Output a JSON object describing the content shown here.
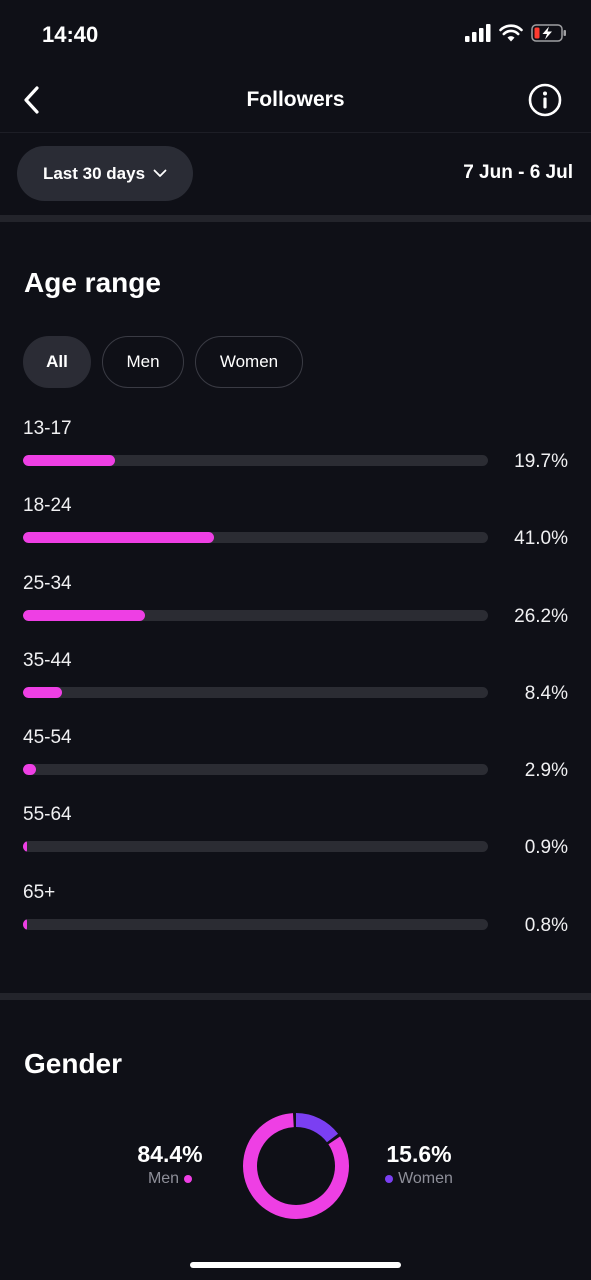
{
  "status": {
    "time": "14:40"
  },
  "nav": {
    "title": "Followers"
  },
  "filter": {
    "range_label": "Last 30 days",
    "date_range": "7 Jun - 6 Jul"
  },
  "age": {
    "title": "Age range",
    "chips": [
      {
        "label": "All",
        "active": true
      },
      {
        "label": "Men",
        "active": false
      },
      {
        "label": "Women",
        "active": false
      }
    ],
    "rows": [
      {
        "label": "13-17",
        "pct_text": "19.7%",
        "value": 19.7
      },
      {
        "label": "18-24",
        "pct_text": "41.0%",
        "value": 41.0
      },
      {
        "label": "25-34",
        "pct_text": "26.2%",
        "value": 26.2
      },
      {
        "label": "35-44",
        "pct_text": "8.4%",
        "value": 8.4
      },
      {
        "label": "45-54",
        "pct_text": "2.9%",
        "value": 2.9
      },
      {
        "label": "55-64",
        "pct_text": "0.9%",
        "value": 0.9
      },
      {
        "label": "65+",
        "pct_text": "0.8%",
        "value": 0.8
      }
    ]
  },
  "gender": {
    "title": "Gender",
    "men": {
      "value_text": "84.4%",
      "label": "Men",
      "value": 84.4
    },
    "women": {
      "value_text": "15.6%",
      "label": "Women",
      "value": 15.6
    }
  },
  "colors": {
    "accent_pink": "#ee3fe4",
    "accent_purple": "#7b3ff2",
    "background": "#0f1017"
  }
}
